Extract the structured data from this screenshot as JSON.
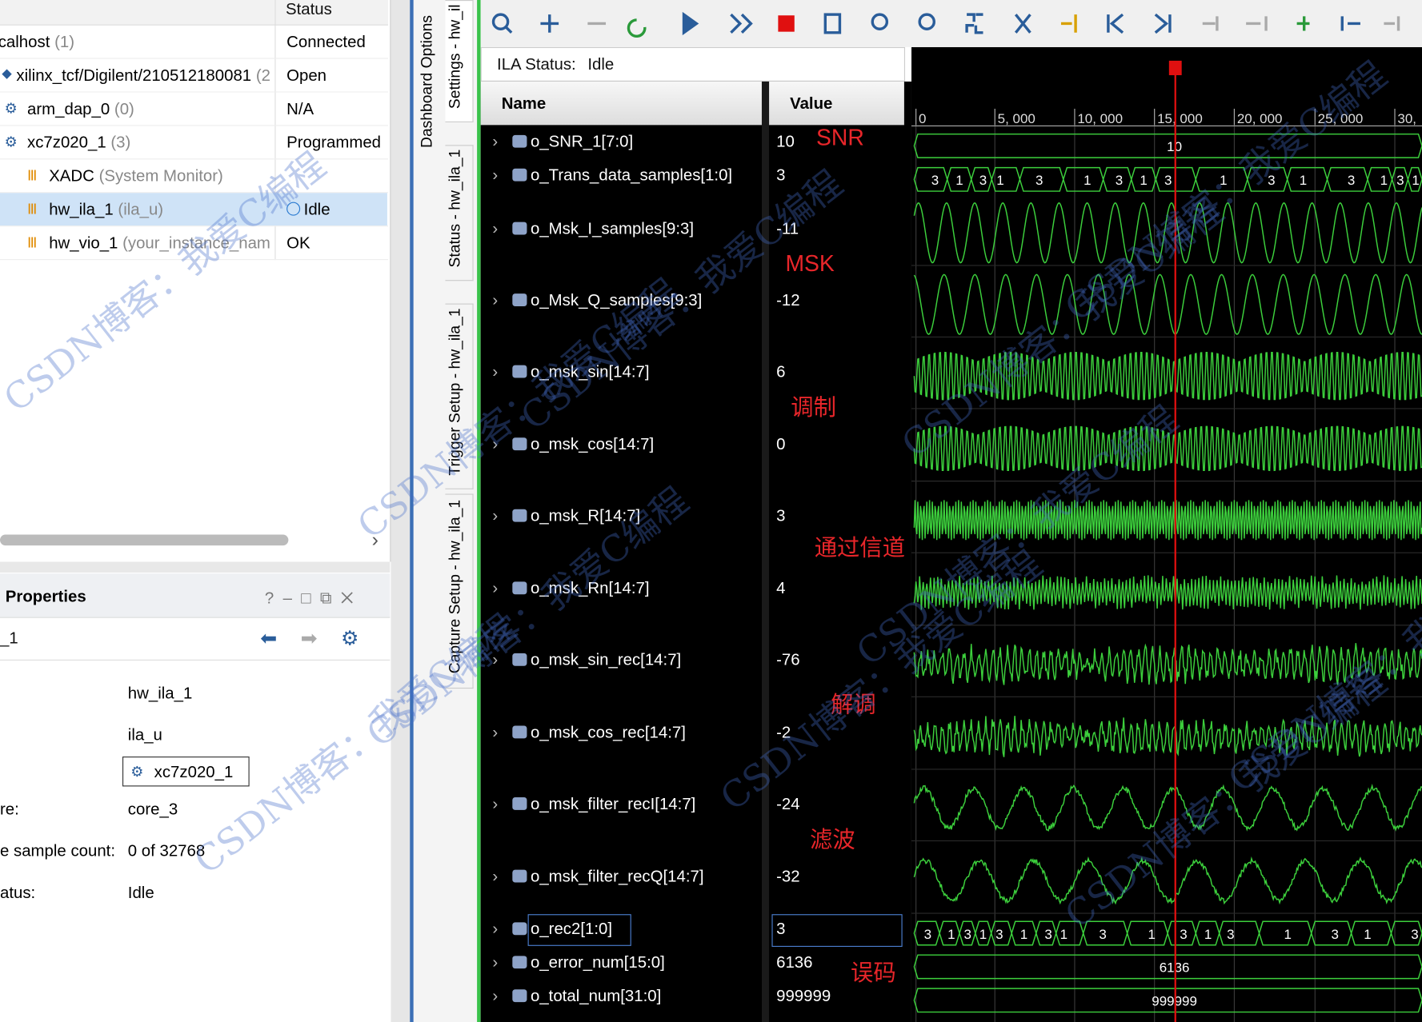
{
  "hardware": {
    "status_header": "Status",
    "rows": [
      {
        "name": "calhost",
        "detail": "(1)",
        "status": "Connected"
      },
      {
        "name": "xilinx_tcf/Digilent/210512180081",
        "detail": "(2",
        "status": "Open"
      },
      {
        "name": "arm_dap_0",
        "detail": "(0)",
        "status": "N/A"
      },
      {
        "name": "xc7z020_1",
        "detail": "(3)",
        "status": "Programmed"
      },
      {
        "name": "XADC",
        "detail": "(System Monitor)"
      },
      {
        "name": "hw_ila_1",
        "detail": "(ila_u)",
        "status": "Idle"
      },
      {
        "name": "hw_vio_1",
        "detail": "(your_instance_nam",
        "status": "OK"
      }
    ]
  },
  "properties": {
    "title": "Properties",
    "object": "_1",
    "rows": [
      {
        "value": "hw_ila_1"
      },
      {
        "value": "ila_u"
      },
      {
        "value": "xc7z020_1"
      },
      {
        "label": "re:",
        "value": "core_3"
      },
      {
        "label": "e sample count:",
        "value": "0 of 32768"
      },
      {
        "label": "atus:",
        "value": "Idle"
      }
    ]
  },
  "tabs": [
    "Dashboard Options",
    "Settings - hw_il",
    "Status - hw_ila_1",
    "Trigger Setup - hw_ila_1",
    "Capture Setup - hw_ila_1"
  ],
  "ila": {
    "status_label": "ILA Status:",
    "status": "Idle",
    "name_header": "Name",
    "value_header": "Value",
    "timeline": [
      "0",
      "5, 000",
      "10, 000",
      "15, 000",
      "20, 000",
      "25, 000",
      "30,"
    ],
    "signals": [
      {
        "name": "o_SNR_1[7:0]",
        "value": "10",
        "bus": [
          "10"
        ]
      },
      {
        "name": "o_Trans_data_samples[1:0]",
        "value": "3",
        "bus": [
          "3",
          "1",
          "3",
          "1",
          "3",
          "1",
          "3",
          "1",
          "3",
          "1",
          "3",
          "1",
          "3",
          "1",
          "3",
          "1"
        ]
      },
      {
        "name": "o_Msk_I_samples[9:3]",
        "value": "-11"
      },
      {
        "name": "o_Msk_Q_samples[9:3]",
        "value": "-12"
      },
      {
        "name": "o_msk_sin[14:7]",
        "value": "6"
      },
      {
        "name": "o_msk_cos[14:7]",
        "value": "0"
      },
      {
        "name": "o_msk_R[14:7]",
        "value": "3"
      },
      {
        "name": "o_msk_Rn[14:7]",
        "value": "4"
      },
      {
        "name": "o_msk_sin_rec[14:7]",
        "value": "-76"
      },
      {
        "name": "o_msk_cos_rec[14:7]",
        "value": "-2"
      },
      {
        "name": "o_msk_filter_recI[14:7]",
        "value": "-24"
      },
      {
        "name": "o_msk_filter_recQ[14:7]",
        "value": "-32"
      },
      {
        "name": "o_rec2[1:0]",
        "value": "3",
        "bus": [
          "3",
          "1",
          "3",
          "1",
          "3",
          "1",
          "3",
          "1",
          "3",
          "1",
          "3",
          "1",
          "3",
          "1",
          "3",
          "1",
          "3"
        ]
      },
      {
        "name": "o_error_num[15:0]",
        "value": "6136",
        "bus": [
          "6136"
        ]
      },
      {
        "name": "o_total_num[31:0]",
        "value": "999999",
        "bus": [
          "999999"
        ]
      }
    ]
  },
  "annotations": [
    "SNR",
    "MSK",
    "调制",
    "通过信道",
    "解调",
    "滤波",
    "误码"
  ],
  "watermark": "CSDN博客：我爱C编程"
}
